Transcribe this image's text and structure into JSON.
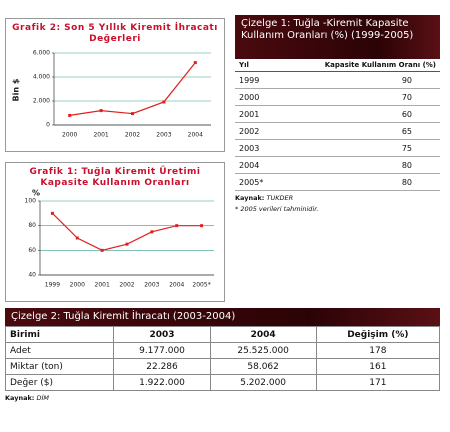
{
  "chart_data": [
    {
      "type": "line",
      "title": "Grafik 2: Son 5 Yıllık Kiremit İhracatı Değerleri",
      "y_label": "Bin $",
      "categories": [
        "2000",
        "2001",
        "2002",
        "2003",
        "2004"
      ],
      "values": [
        800,
        1200,
        950,
        1922,
        5202
      ],
      "color": "#e02020",
      "ylim": [
        0,
        6000
      ],
      "yticks": [
        0,
        {
          "value": 2000,
          "label": "2.000"
        },
        {
          "value": 4000,
          "label": "4.000"
        },
        {
          "value": 6000,
          "label": "6.000"
        }
      ],
      "grid": true
    },
    {
      "type": "line",
      "title": "Grafik 1: Tuğla Kiremit Üretimi Kapasite Kullanım Oranları",
      "y_label": "%",
      "categories": [
        "1999",
        "2000",
        "2001",
        "2002",
        "2003",
        "2004",
        "2005*"
      ],
      "values": [
        90,
        70,
        60,
        65,
        75,
        80,
        80
      ],
      "color": "#e02020",
      "ylim": [
        40,
        100
      ],
      "yticks": [
        40,
        60,
        80,
        100
      ],
      "grid": true
    }
  ],
  "table1": {
    "title": "Çizelge 1: Tuğla -Kiremit Kapasite Kullanım Oranları (%) (1999-2005)",
    "header": [
      "Yıl",
      "Kapasite Kullanım Oranı (%)"
    ],
    "rows": [
      [
        "1999",
        "90"
      ],
      [
        "2000",
        "70"
      ],
      [
        "2001",
        "60"
      ],
      [
        "2002",
        "65"
      ],
      [
        "2003",
        "75"
      ],
      [
        "2004",
        "80"
      ],
      [
        "2005*",
        "80"
      ]
    ],
    "source_label": "Kaynak:",
    "source": "TUKDER",
    "note": "* 2005 verileri tahminidir."
  },
  "table2": {
    "title": "Çizelge 2: Tuğla Kiremit İhracatı (2003-2004)",
    "header": [
      "Birimi",
      "2003",
      "2004",
      "Değişim (%)"
    ],
    "rows": [
      [
        "Adet",
        "9.177.000",
        "25.525.000",
        "178"
      ],
      [
        "Miktar (ton)",
        "22.286",
        "58.062",
        "161"
      ],
      [
        "Değer ($)",
        "1.922.000",
        "5.202.000",
        "171"
      ]
    ],
    "source_label": "Kaynak:",
    "source": "DİM"
  }
}
